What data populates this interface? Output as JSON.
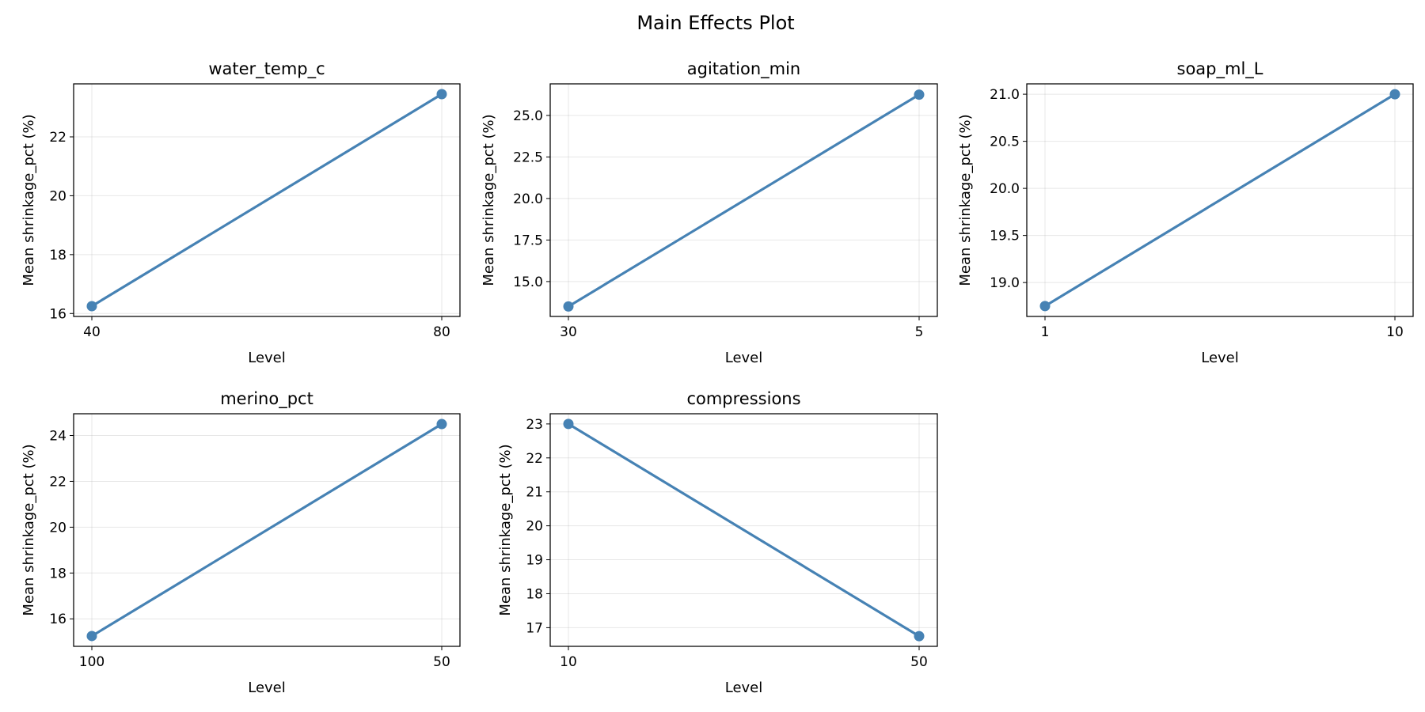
{
  "title": "Main Effects Plot",
  "colors": {
    "series": "#4682b4"
  },
  "chart_data": [
    {
      "type": "line",
      "title": "water_temp_c",
      "xlabel": "Level",
      "ylabel": "Mean shrinkage_pct (%)",
      "categories": [
        "40",
        "80"
      ],
      "values": [
        16.25,
        23.45
      ],
      "ylim": [
        15.9,
        23.8
      ],
      "yticks": [
        16,
        18,
        20,
        22
      ],
      "grid": true
    },
    {
      "type": "line",
      "title": "agitation_min",
      "xlabel": "Level",
      "ylabel": "Mean shrinkage_pct (%)",
      "categories": [
        "30",
        "5"
      ],
      "values": [
        13.5,
        26.25
      ],
      "ylim": [
        12.9,
        26.9
      ],
      "yticks": [
        15.0,
        17.5,
        20.0,
        22.5,
        25.0
      ],
      "ytick_labels": [
        "15.0",
        "17.5",
        "20.0",
        "22.5",
        "25.0"
      ],
      "grid": true
    },
    {
      "type": "line",
      "title": "soap_ml_L",
      "xlabel": "Level",
      "ylabel": "Mean shrinkage_pct (%)",
      "categories": [
        "1",
        "10"
      ],
      "values": [
        18.75,
        21.0
      ],
      "ylim": [
        18.64,
        21.11
      ],
      "yticks": [
        19.0,
        19.5,
        20.0,
        20.5,
        21.0
      ],
      "ytick_labels": [
        "19.0",
        "19.5",
        "20.0",
        "20.5",
        "21.0"
      ],
      "grid": true
    },
    {
      "type": "line",
      "title": "merino_pct",
      "xlabel": "Level",
      "ylabel": "Mean shrinkage_pct (%)",
      "categories": [
        "100",
        "50"
      ],
      "values": [
        15.25,
        24.5
      ],
      "ylim": [
        14.8,
        24.95
      ],
      "yticks": [
        16,
        18,
        20,
        22,
        24
      ],
      "grid": true
    },
    {
      "type": "line",
      "title": "compressions",
      "xlabel": "Level",
      "ylabel": "Mean shrinkage_pct (%)",
      "categories": [
        "10",
        "50"
      ],
      "values": [
        23.0,
        16.75
      ],
      "ylim": [
        16.45,
        23.3
      ],
      "yticks": [
        17,
        18,
        19,
        20,
        21,
        22,
        23
      ],
      "grid": true
    }
  ]
}
